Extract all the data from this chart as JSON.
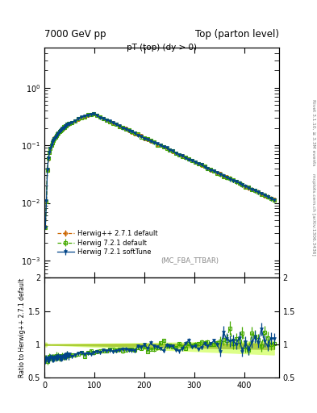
{
  "title_left": "7000 GeV pp",
  "title_right": "Top (parton level)",
  "plot_title": "pT (top) (dy > 0)",
  "annotation": "(MC_FBA_TTBAR)",
  "right_label": "Rivet 3.1.10, ≥ 3.3M events",
  "right_label2": "mcplots.cern.ch [arXiv:1306.3436]",
  "ylabel_ratio": "Ratio to Herwig++ 2.7.1 default",
  "ylim_main_log": [
    0.0005,
    5.0
  ],
  "ylim_ratio": [
    0.5,
    2.0
  ],
  "xlim": [
    0,
    470
  ],
  "xticks": [
    0,
    100,
    200,
    300,
    400
  ],
  "legend": [
    {
      "label": "Herwig++ 2.7.1 default",
      "color": "#cc6600",
      "marker": "o",
      "ls": "--"
    },
    {
      "label": "Herwig 7.2.1 default",
      "color": "#44aa00",
      "marker": "s",
      "ls": "--"
    },
    {
      "label": "Herwig 7.2.1 softTune",
      "color": "#004488",
      "marker": "v",
      "ls": "-"
    }
  ],
  "background_color": "#ffffff",
  "band1_color": "#ddff88",
  "band2_color": "#aacc44"
}
